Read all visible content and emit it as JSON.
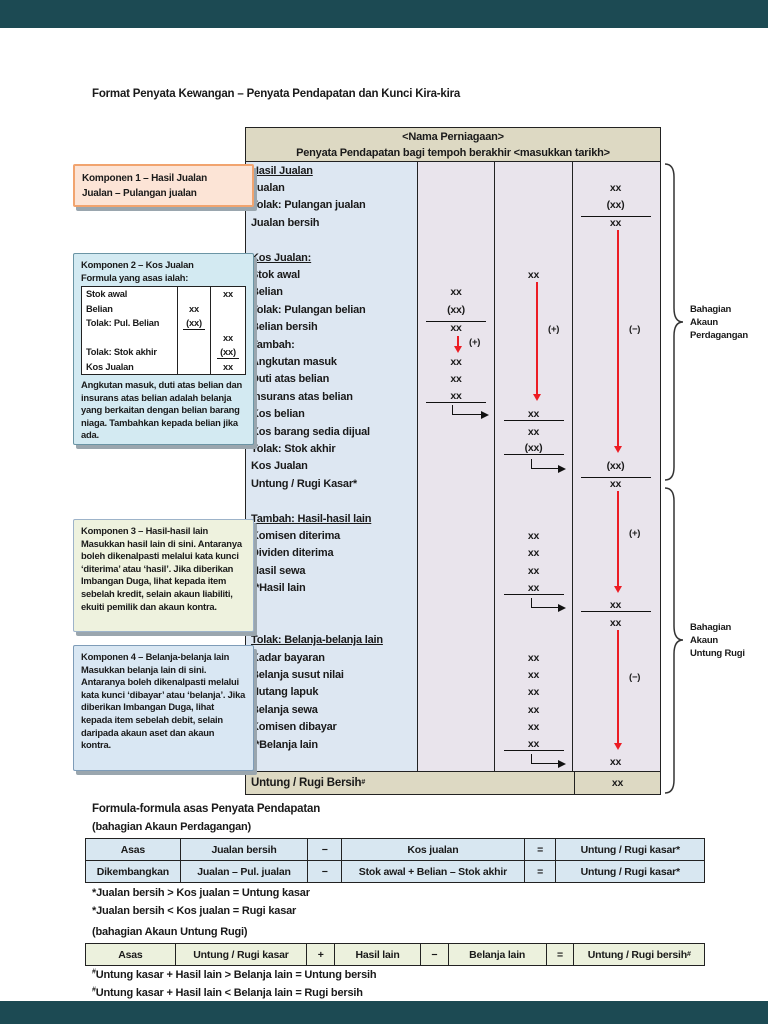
{
  "page": {
    "title": "Format Penyata Kewangan – Penyata Pendapatan dan Kunci Kira-kira"
  },
  "colors": {
    "accent_red": "#ec1c24",
    "header_tan": "#ddd9c3",
    "label_blue": "#dde7f2",
    "value_lavender": "#e9e4ec",
    "k1_peach": "#fce4d6",
    "k2_cyan": "#d3eaf2",
    "k3_green": "#eef2de",
    "k4_blue": "#d9e7f3",
    "viewer_bar": "#1c4a53"
  },
  "statement": {
    "header_line1": "<Nama Perniagaan>",
    "header_line2": "Penyata Pendapatan bagi tempoh berakhir <masukkan tarikh>",
    "rows": [
      {
        "label": "Hasil Jualan",
        "h": true
      },
      {
        "label": "Jualan",
        "c3": "xx"
      },
      {
        "label": "Tolak: Pulangan jualan",
        "c3": "(xx)"
      },
      {
        "label": "Jualan bersih",
        "c3": "xx",
        "u3": "top"
      },
      {
        "label": ""
      },
      {
        "label": "Kos Jualan:",
        "h": true
      },
      {
        "label": "Stok awal",
        "c2": "xx"
      },
      {
        "label": "Belian",
        "c1": "xx"
      },
      {
        "label": "Tolak: Pulangan belian",
        "c1": "(xx)"
      },
      {
        "label": "Belian bersih",
        "c1": "xx",
        "u1": "top"
      },
      {
        "label": "Tambah:"
      },
      {
        "label": "Angkutan masuk",
        "c1": "xx"
      },
      {
        "label": "Duti atas belian",
        "c1": "xx"
      },
      {
        "label": "Insurans atas belian",
        "c1": "xx",
        "u1": "bottom"
      },
      {
        "label": "Kos belian",
        "e1": true,
        "c2": "xx",
        "u2": "bottom"
      },
      {
        "label": "Kos barang sedia dijual",
        "c2": "xx"
      },
      {
        "label": "Tolak: Stok akhir",
        "c2": "(xx)",
        "u2": "bottom"
      },
      {
        "label": "Kos Jualan",
        "e2": true,
        "c3": "(xx)"
      },
      {
        "label": "Untung / Rugi Kasar*",
        "c3": "xx",
        "u3": "top"
      },
      {
        "label": ""
      },
      {
        "label": "Tambah: Hasil-hasil lain",
        "h": true
      },
      {
        "label": "Komisen diterima",
        "c2": "xx"
      },
      {
        "label": "Dividen diterima",
        "c2": "xx"
      },
      {
        "label": "Hasil sewa",
        "c2": "xx"
      },
      {
        "label": "**Hasil lain",
        "c2": "xx",
        "u2": "bottom"
      },
      {
        "label": "",
        "e2": true,
        "c3": "xx",
        "u3": "bottom"
      },
      {
        "label": "",
        "c3": "xx"
      },
      {
        "label": "Tolak: Belanja-belanja lain",
        "h": true
      },
      {
        "label": "Kadar bayaran",
        "c2": "xx"
      },
      {
        "label": "Belanja susut nilai",
        "c2": "xx"
      },
      {
        "label": "Hutang lapuk",
        "c2": "xx"
      },
      {
        "label": "Belanja sewa",
        "c2": "xx"
      },
      {
        "label": "Komisen dibayar",
        "c2": "xx"
      },
      {
        "label": "**Belanja lain",
        "c2": "xx",
        "u2": "bottom"
      },
      {
        "label": "",
        "e2": true,
        "c3": "xx"
      }
    ],
    "footer": {
      "label": "Untung / Rugi Bersih",
      "sup": "#",
      "value": "xx"
    },
    "flow_labels": {
      "c1_plus": "(+)",
      "c2_plus": "(+)",
      "c3_minus1": "(−)",
      "c3_plus": "(+)",
      "c3_minus2": "(−)"
    }
  },
  "braces": {
    "trading": [
      "Bahagian",
      "Akaun",
      "Perdagangan"
    ],
    "profit_loss": [
      "Bahagian",
      "Akaun",
      "Untung Rugi"
    ]
  },
  "komponen1": {
    "line1": "Komponen 1 – Hasil Jualan",
    "line2": "Jualan – Pulangan jualan"
  },
  "komponen2": {
    "title": "Komponen 2 – Kos Jualan",
    "subtitle": "Formula yang asas ialah:",
    "table": [
      {
        "label": "Stok awal",
        "mid": "",
        "right": "xx"
      },
      {
        "label": "Belian",
        "mid": "xx",
        "right": ""
      },
      {
        "label": "Tolak: Pul. Belian",
        "mid": "(xx)",
        "right": "",
        "mid_u": true
      },
      {
        "label": "",
        "mid": "",
        "right": "xx"
      },
      {
        "label": "Tolak: Stok akhir",
        "mid": "",
        "right": "(xx)",
        "right_u": true
      },
      {
        "label": "Kos Jualan",
        "mid": "",
        "right": "xx"
      }
    ],
    "note": "Angkutan masuk, duti atas belian dan insurans atas belian adalah belanja yang berkaitan dengan belian barang niaga. Tambahkan kepada belian jika ada."
  },
  "komponen3": {
    "title": "Komponen 3 – Hasil-hasil lain",
    "body": "Masukkan hasil lain di sini. Antaranya boleh dikenalpasti melalui kata kunci ‘diterima’ atau ‘hasil’. Jika diberikan Imbangan Duga, lihat kepada item sebelah kredit, selain akaun liabiliti, ekuiti pemilik dan akaun kontra."
  },
  "komponen4": {
    "title": "Komponen 4 – Belanja-belanja lain",
    "body": "Masukkan belanja lain di sini. Antaranya boleh dikenalpasti melalui kata kunci ‘dibayar’ atau ‘belanja’. Jika diberikan Imbangan Duga, lihat kepada item sebelah debit, selain daripada akaun aset dan akaun kontra."
  },
  "formulas": {
    "heading": "Formula-formula asas Penyata Pendapatan",
    "sub1": "(bahagian Akaun Perdagangan)",
    "table1_rows": [
      [
        "Asas",
        "Jualan bersih",
        "−",
        "Kos jualan",
        "=",
        "Untung / Rugi kasar*"
      ],
      [
        "Dikembangkan",
        "Jualan – Pul. jualan",
        "−",
        "Stok awal + Belian – Stok akhir",
        "=",
        "Untung / Rugi kasar*"
      ]
    ],
    "notes1": [
      "*Jualan bersih > Kos jualan = Untung kasar",
      "*Jualan bersih < Kos jualan = Rugi kasar"
    ],
    "sub2": "(bahagian Akaun Untung Rugi)",
    "table2_rows": [
      [
        "Asas",
        "Untung / Rugi kasar",
        "+",
        "Hasil lain",
        "−",
        "Belanja lain",
        "=",
        "Untung / Rugi bersih#"
      ]
    ],
    "notes2": [
      "#Untung kasar + Hasil lain > Belanja lain = Untung bersih",
      "#Untung kasar + Hasil lain < Belanja lain = Rugi bersih"
    ]
  }
}
